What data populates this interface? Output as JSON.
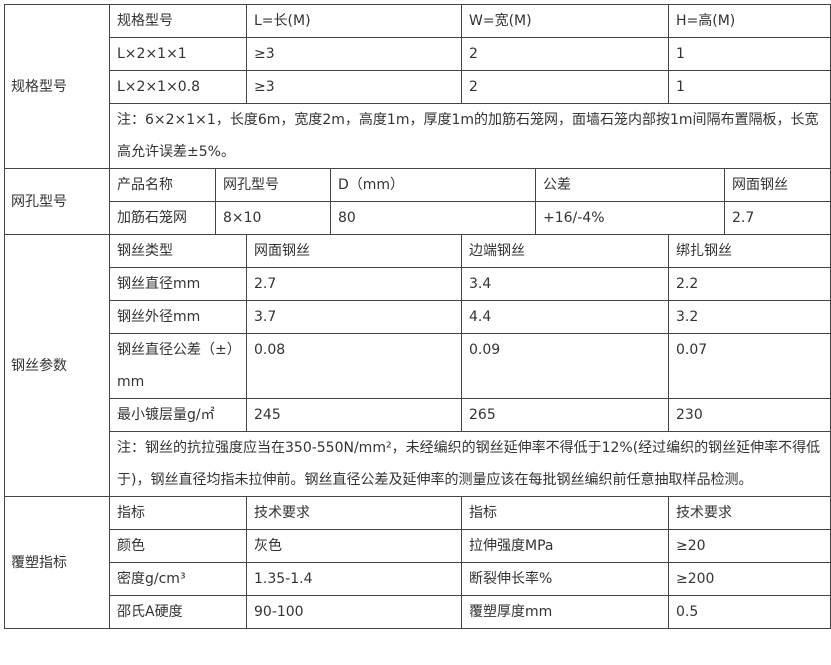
{
  "spec": {
    "section": "规格型号",
    "headers": [
      "规格型号",
      "L=长(M)",
      "W=宽(M)",
      "H=高(M)"
    ],
    "rows": [
      [
        "L×2×1×1",
        "≥3",
        "2",
        "1"
      ],
      [
        "L×2×1×0.8",
        "≥3",
        "2",
        "1"
      ]
    ],
    "note": "注：6×2×1×1，长度6m，宽度2m，高度1m，厚度1m的加筋石笼网，面墙石笼内部按1m间隔布置隔板，长宽高允许误差±5%。"
  },
  "mesh": {
    "section": "网孔型号",
    "headers": [
      "产品名称",
      "网孔型号",
      "D（mm）",
      "公差",
      "网面钢丝"
    ],
    "row": [
      "加筋石笼网",
      "8×10",
      "80",
      "+16/-4%",
      "2.7"
    ]
  },
  "wire": {
    "section": "钢丝参数",
    "headers": [
      "钢丝类型",
      "网面钢丝",
      "边端钢丝",
      "绑扎钢丝"
    ],
    "rows": [
      [
        "钢丝直径mm",
        "2.7",
        "3.4",
        "2.2"
      ],
      [
        "钢丝外径mm",
        "3.7",
        "4.4",
        "3.2"
      ],
      [
        "钢丝直径公差（±）mm",
        "0.08",
        "0.09",
        "0.07"
      ],
      [
        "最小镀层量g/㎡",
        "245",
        "265",
        "230"
      ]
    ],
    "note": "注：钢丝的抗拉强度应当在350-550N/mm²，未经编织的钢丝延伸率不得低于12%(经过编织的钢丝延伸率不得低于)，钢丝直径均指未拉伸前。钢丝直径公差及延伸率的测量应该在每批钢丝编织前任意抽取样品检测。"
  },
  "coating": {
    "section": "覆塑指标",
    "headers": [
      "指标",
      "技术要求",
      "指标",
      "技术要求"
    ],
    "rows": [
      [
        "颜色",
        "灰色",
        "拉伸强度MPa",
        "≥20"
      ],
      [
        "密度g/cm³",
        "1.35-1.4",
        "断裂伸长率%",
        "≥200"
      ],
      [
        "邵氏A硬度",
        "90-100",
        "覆塑厚度mm",
        "0.5"
      ]
    ]
  }
}
